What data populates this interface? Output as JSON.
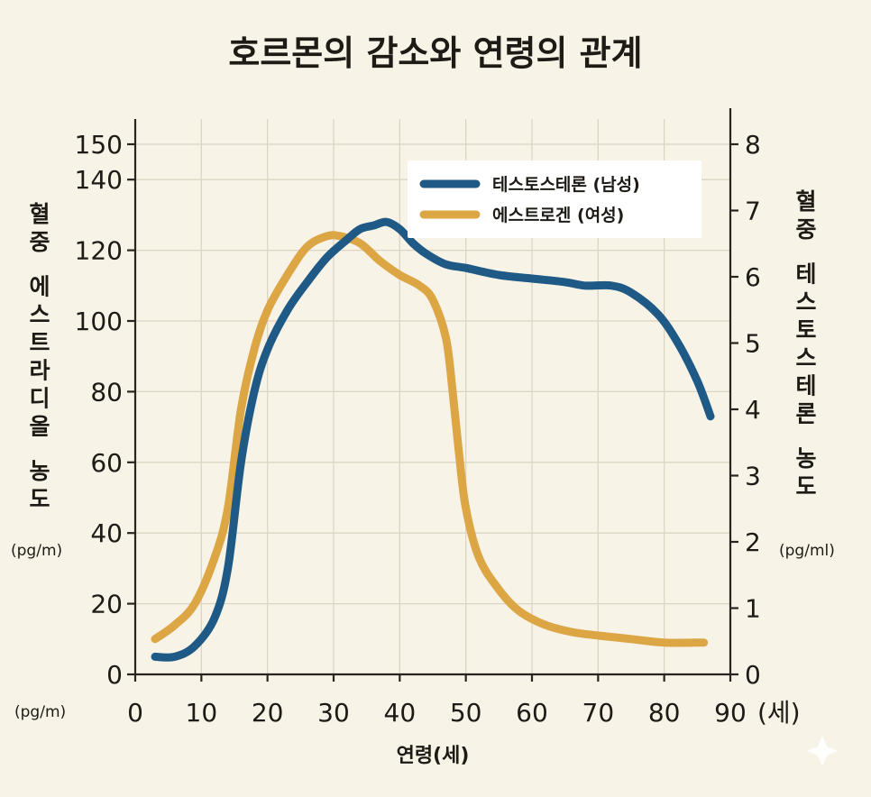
{
  "chart_data": {
    "type": "line",
    "title": "호르몬의 감소와 연령의 관계",
    "xlabel": "연령(세)",
    "x_unit": "(세)",
    "x_axis_left_unit": "(pg/m)",
    "ylabel_left": "혈중 에스트라디올 농도",
    "ylabel_left_unit": "(pg/m)",
    "ylabel_right": "혈중 테스토스테론 농도",
    "ylabel_right_unit": "(pg/ml)",
    "xlim": [
      0,
      90
    ],
    "ylim_left": [
      0,
      150
    ],
    "ylim_right": [
      0,
      8
    ],
    "xticks": [
      "0",
      "10",
      "20",
      "30",
      "40",
      "50",
      "60",
      "70",
      "80",
      "90"
    ],
    "yticks_left": [
      "0",
      "20",
      "40",
      "60",
      "80",
      "100",
      "120",
      "140",
      "150"
    ],
    "yticks_right": [
      "0",
      "1",
      "2",
      "3",
      "4",
      "5",
      "6",
      "7",
      "8"
    ],
    "grid": true,
    "legend_position": "top-right",
    "series": [
      {
        "name": "테스토스테론 (남성)",
        "axis": "left",
        "color": "#1f5a86",
        "x": [
          3,
          6,
          9,
          12,
          14,
          16,
          18,
          20,
          23,
          26,
          29,
          32,
          34,
          36,
          38,
          40,
          42,
          44,
          47,
          50,
          55,
          60,
          65,
          68,
          72,
          75,
          79,
          82,
          85,
          87
        ],
        "y": [
          5,
          5,
          8,
          16,
          30,
          60,
          80,
          92,
          103,
          111,
          118,
          123,
          126,
          127,
          128,
          126,
          122,
          119,
          116,
          115,
          113,
          112,
          111,
          110,
          110,
          108,
          102,
          94,
          83,
          73
        ]
      },
      {
        "name": "에스트로겐 (여성)",
        "axis": "left",
        "color": "#dca645",
        "x": [
          3,
          6,
          9,
          12,
          14,
          16,
          18,
          20,
          23,
          26,
          29,
          31,
          34,
          37,
          40,
          43,
          45,
          47,
          48,
          49,
          50,
          52,
          55,
          58,
          62,
          66,
          70,
          75,
          80,
          86
        ],
        "y": [
          10,
          14,
          20,
          33,
          47,
          75,
          92,
          103,
          113,
          121,
          124,
          124,
          122,
          117,
          113,
          110,
          106,
          95,
          80,
          62,
          47,
          33,
          24,
          18,
          14,
          12,
          11,
          10,
          9,
          9
        ]
      }
    ]
  }
}
